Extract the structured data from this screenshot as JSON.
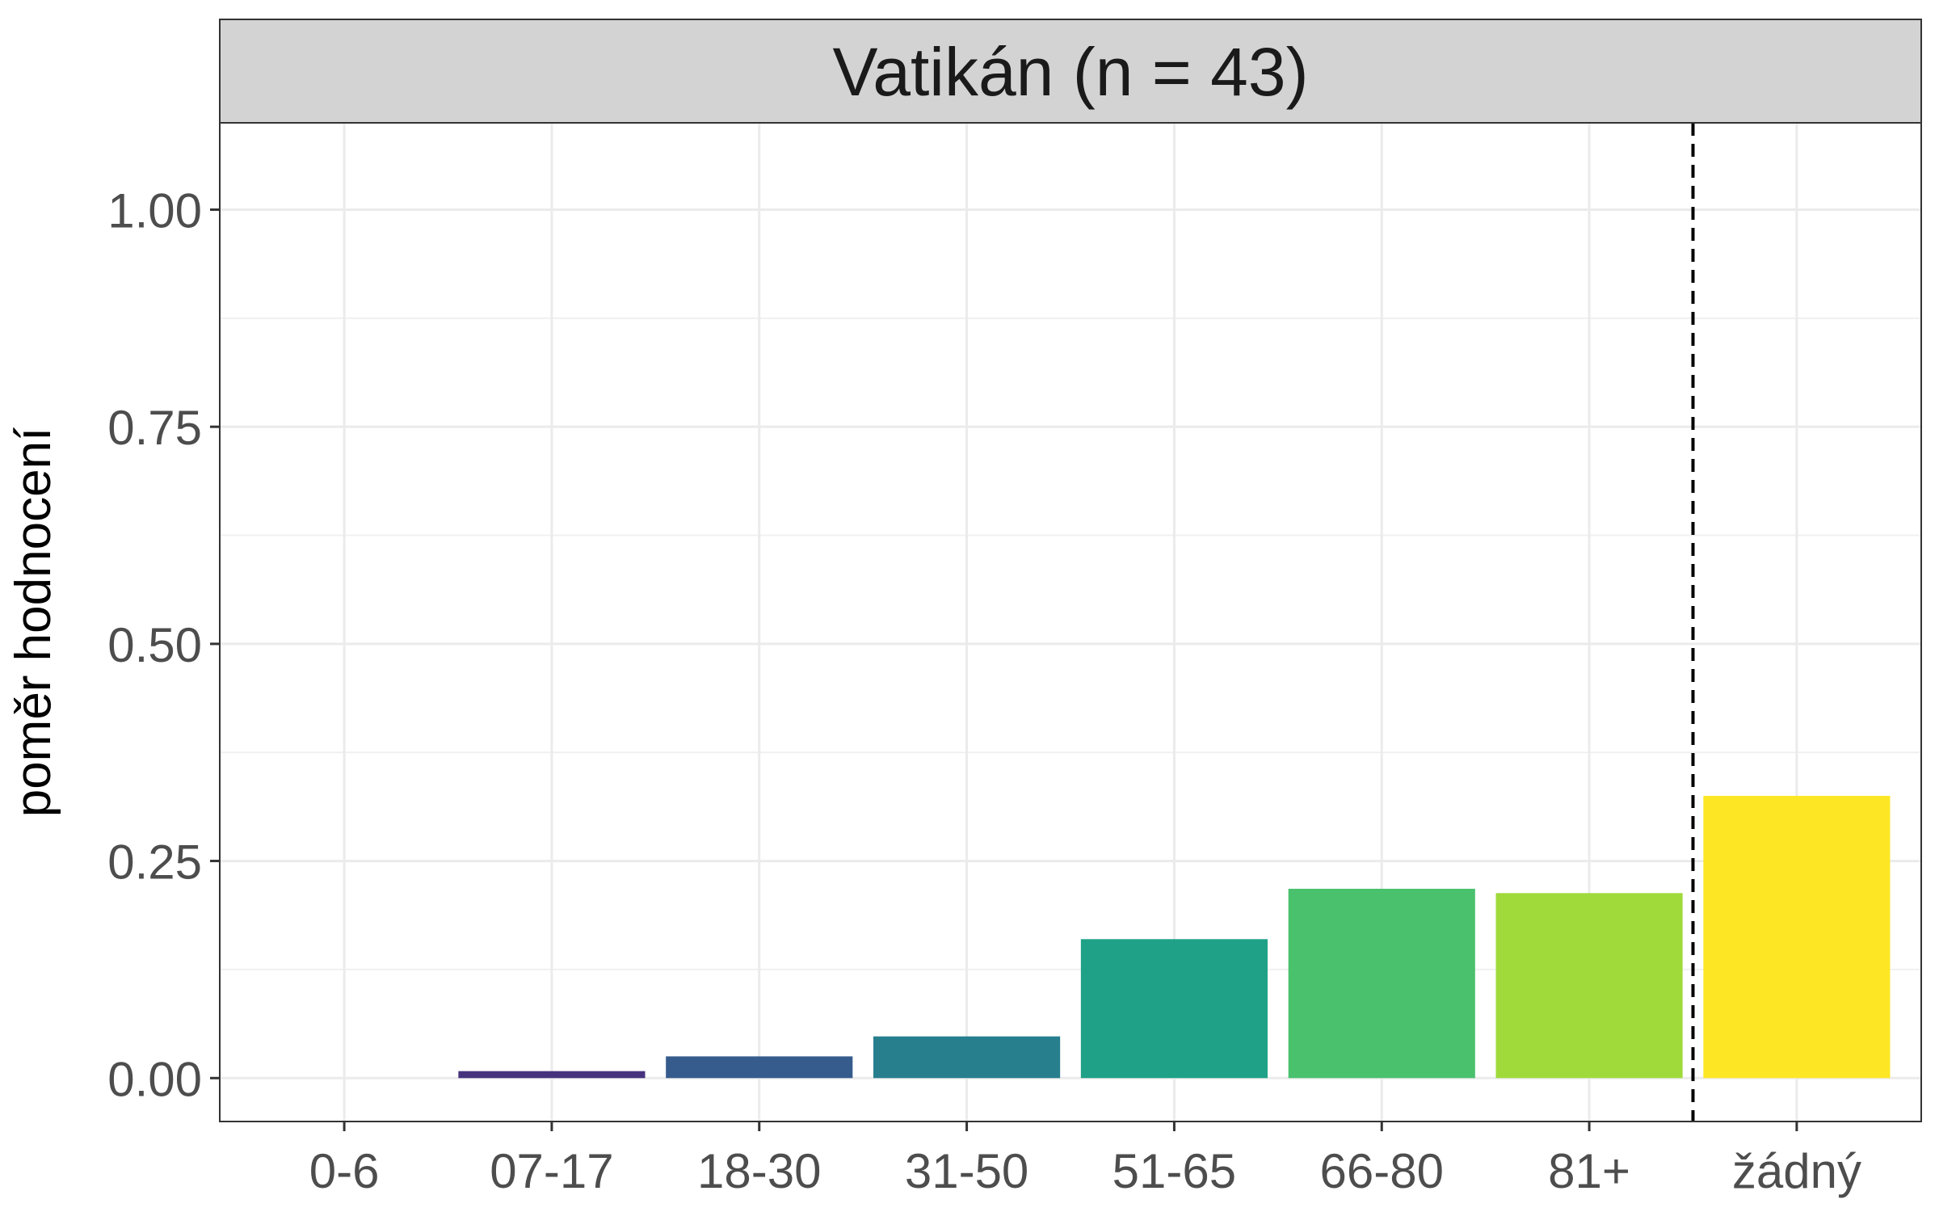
{
  "chart_data": {
    "type": "bar",
    "facet_title": "Vatikán (n = 43)",
    "categories": [
      "0-6",
      "07-17",
      "18-30",
      "31-50",
      "51-65",
      "66-80",
      "81+",
      "žádný"
    ],
    "values": [
      0.0,
      0.008,
      0.025,
      0.048,
      0.16,
      0.218,
      0.213,
      0.325
    ],
    "colors": [
      "#440154",
      "#46337E",
      "#365C8D",
      "#277F8E",
      "#1FA187",
      "#4AC16D",
      "#9FDA3A",
      "#FDE725"
    ],
    "ylabel": "poměr hodnocení",
    "xlabel": "",
    "ylim": [
      -0.05,
      1.1
    ],
    "yticks": [
      "0.00",
      "0.25",
      "0.50",
      "0.75",
      "1.00"
    ],
    "ytick_values": [
      0,
      0.25,
      0.5,
      0.75,
      1.0
    ],
    "reference_line": {
      "style": "dashed",
      "between_categories": [
        "81+",
        "žádný"
      ]
    },
    "grid": true,
    "legend": "none"
  }
}
